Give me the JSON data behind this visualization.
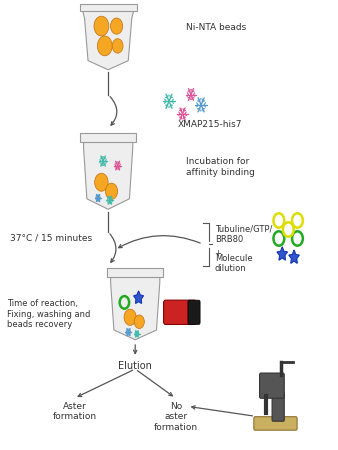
{
  "background_color": "#ffffff",
  "fig_width": 3.38,
  "fig_height": 4.5,
  "dpi": 100,
  "labels": {
    "ni_nta": "Ni-NTA beads",
    "xmap": "XMAP215-his7",
    "incubation": "Incubation for\naffinity binding",
    "temp": "37°C / 15 minutes",
    "tubuline": "Tubuline/GTP/\nBRB80",
    "plus": "+",
    "molecule": "Molecule\ndilution",
    "time_reaction": "Time of reaction,\nFixing, washing and\nbeads recovery",
    "elution": "Elution",
    "aster": "Aster\nformation",
    "no_aster": "No\naster\nformation"
  },
  "colors": {
    "tube_fill": "#eeeeee",
    "tube_stroke": "#999999",
    "tube_water": "#ddeeff",
    "bead_orange": "#f5a623",
    "bead_edge": "#c07010",
    "protein_blue": "#5599cc",
    "protein_teal": "#44bbaa",
    "protein_pink": "#dd5599",
    "tubulin_yellow": "#dddd00",
    "tubulin_green": "#22aa22",
    "molecule_blue": "#3355cc",
    "magnet_red": "#cc2222",
    "magnet_dark": "#1a1a1a",
    "arrow_color": "#555555",
    "text_color": "#333333",
    "star_blue": "#3355cc",
    "bead_green_outline": "#22aa22",
    "bead_yellow_outline": "#dddd00"
  }
}
